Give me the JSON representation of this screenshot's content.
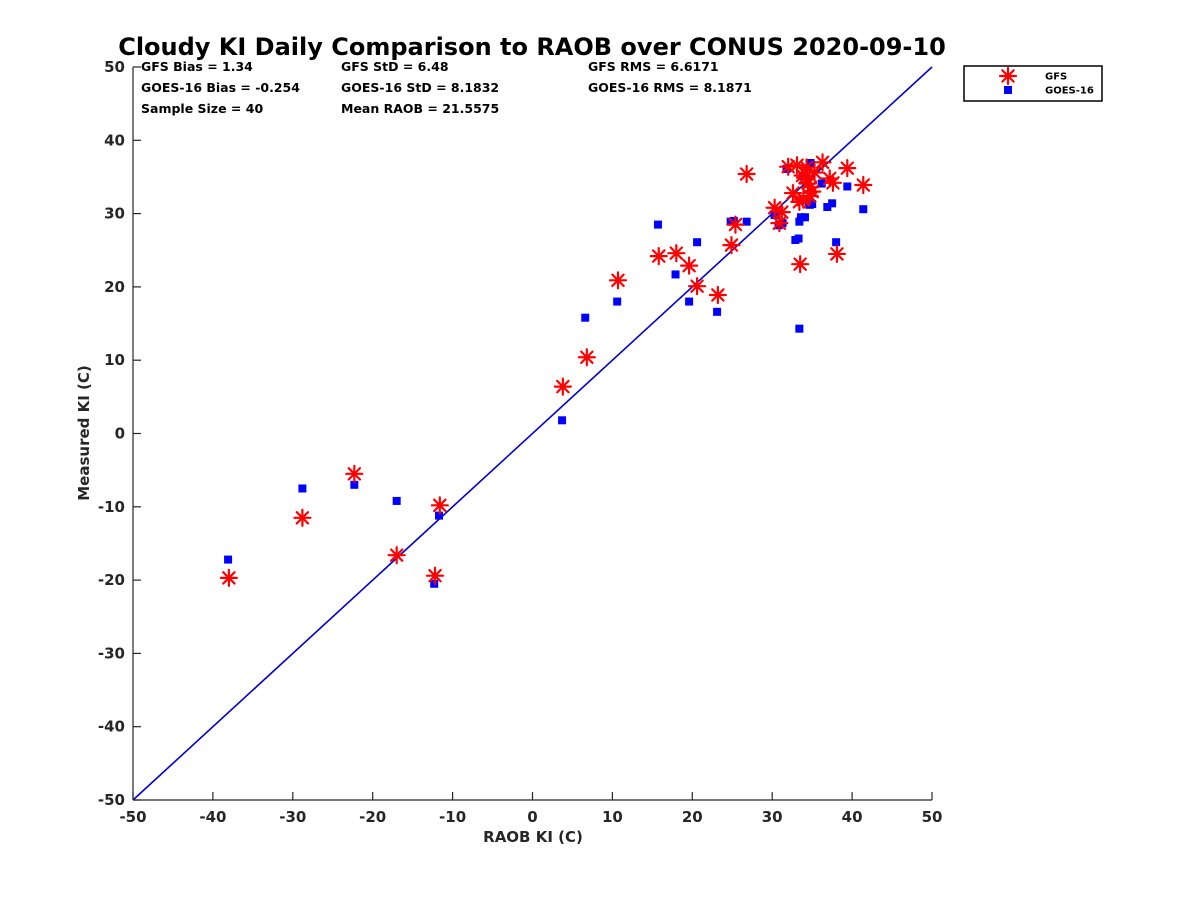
{
  "chart_data": {
    "type": "scatter",
    "title": "Cloudy KI Daily Comparison to RAOB over CONUS 2020-09-10",
    "xlabel": "RAOB KI (C)",
    "ylabel": "Measured KI (C)",
    "xlim": [
      -50,
      50
    ],
    "ylim": [
      -50,
      50
    ],
    "xticks": [
      "-50",
      "-40",
      "-30",
      "-20",
      "-10",
      "0",
      "10",
      "20",
      "30",
      "40",
      "50"
    ],
    "yticks": [
      "-50",
      "-40",
      "-30",
      "-20",
      "-10",
      "0",
      "10",
      "20",
      "30",
      "40",
      "50"
    ],
    "grid": false,
    "legend_position": "outside-top-right",
    "reference_line": {
      "from": [
        -50,
        -50
      ],
      "to": [
        50,
        50
      ],
      "color": "#0000cc"
    },
    "stats": [
      [
        "GFS Bias = 1.34",
        "GFS StD = 6.48",
        "GFS RMS = 6.6171"
      ],
      [
        "GOES-16 Bias = -0.254",
        "GOES-16 StD = 8.1832",
        "GOES-16 RMS = 8.1871"
      ],
      [
        "Sample Size = 40",
        "Mean RAOB = 21.5575"
      ]
    ],
    "series": [
      {
        "name": "GFS",
        "marker": "asterisk",
        "color": "#ff0000",
        "points": [
          [
            -38,
            -19.7
          ],
          [
            -28.8,
            -11.5
          ],
          [
            -22.3,
            -5.5
          ],
          [
            -17,
            -16.6
          ],
          [
            -12.2,
            -19.4
          ],
          [
            -11.6,
            -9.8
          ],
          [
            3.8,
            6.4
          ],
          [
            6.8,
            10.4
          ],
          [
            10.7,
            20.9
          ],
          [
            15.8,
            24.2
          ],
          [
            18,
            24.6
          ],
          [
            19.6,
            22.9
          ],
          [
            20.6,
            20.1
          ],
          [
            23.2,
            18.9
          ],
          [
            24.9,
            25.7
          ],
          [
            25.4,
            28.5
          ],
          [
            26.8,
            35.4
          ],
          [
            30.3,
            30.8
          ],
          [
            31.2,
            30.2
          ],
          [
            30.9,
            28.7
          ],
          [
            32,
            36.4
          ],
          [
            32.6,
            32.8
          ],
          [
            33.1,
            36.6
          ],
          [
            33.4,
            31.6
          ],
          [
            33.5,
            23.1
          ],
          [
            33.8,
            35.2
          ],
          [
            34.1,
            34.9
          ],
          [
            34.3,
            36.3
          ],
          [
            34.7,
            32.4
          ],
          [
            35,
            33
          ],
          [
            35.3,
            35.6
          ],
          [
            36.3,
            37
          ],
          [
            37.2,
            34.8
          ],
          [
            37.6,
            34.2
          ],
          [
            38.1,
            24.5
          ],
          [
            39.4,
            36.2
          ],
          [
            41.4,
            33.9
          ],
          [
            33.9,
            31.9
          ],
          [
            34.5,
            34.1
          ],
          [
            34.8,
            33.6
          ]
        ]
      },
      {
        "name": "GOES-16",
        "marker": "square",
        "color": "#0000ff",
        "points": [
          [
            -38.1,
            -17.2
          ],
          [
            -28.8,
            -7.5
          ],
          [
            -22.3,
            -7
          ],
          [
            -17,
            -9.2
          ],
          [
            -12.3,
            -20.5
          ],
          [
            -11.7,
            -11.2
          ],
          [
            3.7,
            1.8
          ],
          [
            6.6,
            15.8
          ],
          [
            10.6,
            18
          ],
          [
            15.7,
            28.5
          ],
          [
            17.9,
            21.7
          ],
          [
            19.6,
            18
          ],
          [
            20.6,
            26.1
          ],
          [
            23.1,
            16.6
          ],
          [
            24.8,
            28.9
          ],
          [
            25.2,
            29
          ],
          [
            26.8,
            28.9
          ],
          [
            30.3,
            29.8
          ],
          [
            30.8,
            28.4
          ],
          [
            31.3,
            28.7
          ],
          [
            31.8,
            36.1
          ],
          [
            32.9,
            26.4
          ],
          [
            33.3,
            26.6
          ],
          [
            33.4,
            28.9
          ],
          [
            33.4,
            14.3
          ],
          [
            33.6,
            29.5
          ],
          [
            33.9,
            32
          ],
          [
            34.1,
            29.5
          ],
          [
            34.4,
            31.9
          ],
          [
            34.7,
            31.2
          ],
          [
            34.8,
            36.9
          ],
          [
            36.2,
            34.1
          ],
          [
            36.9,
            30.9
          ],
          [
            37.5,
            31.4
          ],
          [
            38,
            26.1
          ],
          [
            39.4,
            33.7
          ],
          [
            41.4,
            30.6
          ],
          [
            33.8,
            35.1
          ],
          [
            34.6,
            31.6
          ],
          [
            35,
            31.3
          ]
        ]
      }
    ]
  }
}
